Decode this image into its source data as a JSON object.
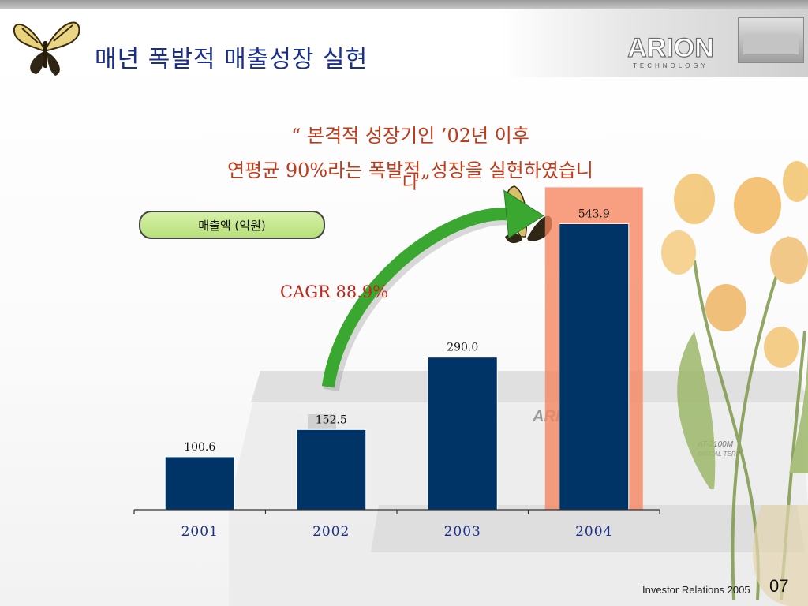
{
  "header": {
    "title": "매년 폭발적 매출성장 실현",
    "logo_text": "ARION",
    "logo_sub": "TECHNOLOGY"
  },
  "headline": {
    "line1": "“ 본격적 성장기인 ’02년 이후",
    "line2": "연평균 90%라는 폭발적„성장을 실현하였습니",
    "line3": "다"
  },
  "unit_label": "매출액 (억원)",
  "cagr_label": "CAGR 88.9%",
  "device_labels": {
    "brand": "ARION",
    "model": "AT-2100M",
    "model_sub": "DIGITAL TERR"
  },
  "colors": {
    "bar": "#003366",
    "title": "#1a2e8c",
    "headline": "#c13b1a",
    "highlight": "#f5845c",
    "arrow": "#3aa830",
    "axis_text": "#1a2e8c"
  },
  "chart_data": {
    "type": "bar",
    "categories": [
      "2001",
      "2002",
      "2003",
      "2004"
    ],
    "values": [
      100.6,
      152.5,
      290.0,
      543.9
    ],
    "value_labels": [
      "100.6",
      "152.5",
      "290.0",
      "543.9"
    ],
    "highlight_category": "2004",
    "ylim": [
      0,
      600
    ],
    "grid": false,
    "title": "",
    "xlabel": "",
    "ylabel": ""
  },
  "footer": {
    "text": "Investor Relations 2005",
    "page": "07"
  }
}
